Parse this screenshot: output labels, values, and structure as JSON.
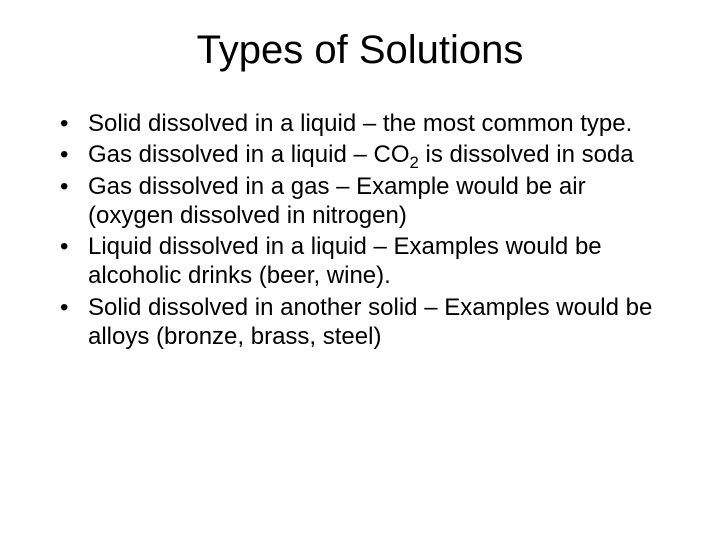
{
  "slide": {
    "title": "Types of Solutions",
    "title_fontsize": 40,
    "body_fontsize": 24,
    "text_color": "#000000",
    "background_color": "#ffffff",
    "font_family": "Arial",
    "bullets": [
      {
        "prefix": "Solid dissolved in a liquid – the most common type."
      },
      {
        "prefix": "Gas dissolved in a liquid – CO",
        "sub": "2",
        "suffix": " is dissolved in soda"
      },
      {
        "prefix": "Gas dissolved in a gas – Example would be air (oxygen dissolved in nitrogen)"
      },
      {
        "prefix": "Liquid dissolved in a liquid – Examples would be alcoholic drinks (beer, wine)."
      },
      {
        "prefix": "Solid dissolved in another solid – Examples would be alloys (bronze, brass, steel)"
      }
    ]
  }
}
